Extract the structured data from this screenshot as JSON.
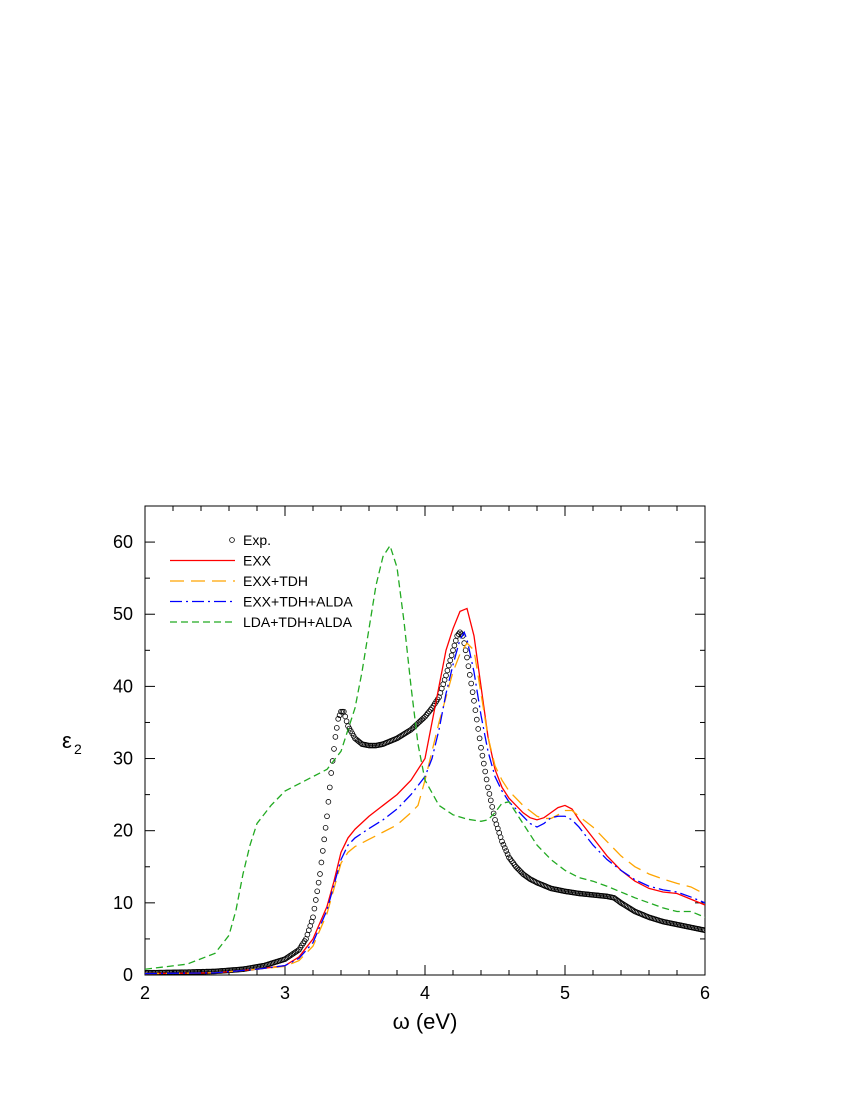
{
  "chart_data": {
    "type": "line",
    "xlabel": "ω (eV)",
    "ylabel": "ε",
    "ylabel_subscript": "2",
    "xlim": [
      2,
      6
    ],
    "ylim": [
      0,
      65
    ],
    "xticks": [
      2,
      3,
      4,
      5,
      6
    ],
    "yticks": [
      0,
      10,
      20,
      30,
      40,
      50,
      60
    ],
    "grid": false,
    "legend_position": "top-left",
    "series": [
      {
        "name": "Exp.",
        "style": "open-circles",
        "color": "#000000",
        "x": [
          2.0,
          2.3,
          2.5,
          2.7,
          2.85,
          3.0,
          3.1,
          3.15,
          3.2,
          3.25,
          3.3,
          3.33,
          3.36,
          3.38,
          3.4,
          3.42,
          3.45,
          3.5,
          3.55,
          3.6,
          3.65,
          3.7,
          3.8,
          3.9,
          4.0,
          4.05,
          4.1,
          4.15,
          4.2,
          4.23,
          4.25,
          4.27,
          4.3,
          4.35,
          4.4,
          4.45,
          4.5,
          4.55,
          4.6,
          4.65,
          4.7,
          4.75,
          4.8,
          4.85,
          4.9,
          5.0,
          5.1,
          5.2,
          5.3,
          5.35,
          5.4,
          5.5,
          5.6,
          5.7,
          5.8,
          5.9,
          6.0
        ],
        "y": [
          0.3,
          0.4,
          0.5,
          0.8,
          1.3,
          2.2,
          3.5,
          5.0,
          8.0,
          14.0,
          22.0,
          28.0,
          33.0,
          35.5,
          36.5,
          36.5,
          34.5,
          32.8,
          32.0,
          31.8,
          31.8,
          32.0,
          32.8,
          34.0,
          35.8,
          37.0,
          38.5,
          41.5,
          45.0,
          47.0,
          47.5,
          47.0,
          44.0,
          38.0,
          31.5,
          26.0,
          21.5,
          18.5,
          16.3,
          15.0,
          14.0,
          13.3,
          12.8,
          12.4,
          12.0,
          11.6,
          11.3,
          11.1,
          10.9,
          10.7,
          10.0,
          8.8,
          8.0,
          7.4,
          7.0,
          6.6,
          6.2
        ]
      },
      {
        "name": "EXX",
        "style": "solid",
        "color": "#ff0000",
        "x": [
          2.0,
          2.5,
          2.8,
          3.0,
          3.1,
          3.2,
          3.3,
          3.35,
          3.4,
          3.45,
          3.5,
          3.6,
          3.7,
          3.8,
          3.9,
          4.0,
          4.1,
          4.15,
          4.2,
          4.25,
          4.3,
          4.35,
          4.4,
          4.45,
          4.5,
          4.55,
          4.6,
          4.7,
          4.75,
          4.8,
          4.85,
          4.9,
          4.95,
          5.0,
          5.05,
          5.1,
          5.2,
          5.3,
          5.4,
          5.5,
          5.6,
          5.7,
          5.8,
          5.9,
          6.0
        ],
        "y": [
          0.2,
          0.3,
          0.8,
          1.3,
          2.5,
          5.0,
          9.5,
          13.0,
          17.0,
          19.0,
          20.2,
          22.0,
          23.5,
          25.0,
          27.0,
          30.0,
          40.0,
          45.0,
          48.0,
          50.4,
          50.8,
          47.0,
          40.0,
          33.0,
          28.5,
          26.0,
          24.5,
          22.5,
          21.8,
          21.5,
          21.8,
          22.5,
          23.2,
          23.5,
          23.0,
          21.5,
          19.0,
          16.5,
          14.5,
          13.0,
          12.0,
          11.5,
          11.3,
          10.5,
          9.7
        ]
      },
      {
        "name": "EXX+TDH",
        "style": "long-dash",
        "color": "#ffa500",
        "x": [
          2.0,
          2.5,
          2.8,
          3.0,
          3.1,
          3.2,
          3.3,
          3.35,
          3.4,
          3.45,
          3.5,
          3.6,
          3.7,
          3.8,
          3.9,
          3.95,
          4.0,
          4.1,
          4.2,
          4.25,
          4.3,
          4.35,
          4.4,
          4.45,
          4.5,
          4.55,
          4.6,
          4.7,
          4.8,
          4.85,
          4.9,
          4.95,
          5.0,
          5.05,
          5.1,
          5.2,
          5.3,
          5.4,
          5.5,
          5.6,
          5.7,
          5.8,
          5.9,
          6.0
        ],
        "y": [
          0.2,
          0.3,
          0.8,
          1.2,
          2.0,
          4.0,
          8.5,
          12.0,
          15.5,
          17.0,
          17.8,
          18.8,
          19.8,
          20.8,
          22.5,
          23.5,
          27.0,
          35.0,
          42.0,
          44.5,
          46.0,
          45.0,
          39.0,
          33.0,
          29.0,
          27.0,
          25.5,
          23.5,
          22.0,
          21.7,
          21.7,
          22.2,
          22.8,
          22.8,
          22.0,
          20.5,
          18.5,
          16.5,
          15.0,
          14.0,
          13.3,
          12.7,
          12.2,
          11.2
        ]
      },
      {
        "name": "EXX+TDH+ALDA",
        "style": "dash-dot",
        "color": "#0000ff",
        "x": [
          2.0,
          2.5,
          2.8,
          3.0,
          3.1,
          3.2,
          3.3,
          3.35,
          3.4,
          3.45,
          3.5,
          3.6,
          3.7,
          3.8,
          3.9,
          4.0,
          4.05,
          4.1,
          4.15,
          4.2,
          4.25,
          4.28,
          4.3,
          4.35,
          4.4,
          4.45,
          4.5,
          4.55,
          4.6,
          4.7,
          4.75,
          4.8,
          4.85,
          4.9,
          4.95,
          5.0,
          5.05,
          5.1,
          5.2,
          5.3,
          5.4,
          5.5,
          5.6,
          5.7,
          5.8,
          5.9,
          6.0
        ],
        "y": [
          0.2,
          0.3,
          0.8,
          1.3,
          2.3,
          4.5,
          9.0,
          12.5,
          16.0,
          18.0,
          19.0,
          20.3,
          21.5,
          23.0,
          25.0,
          27.5,
          30.0,
          34.0,
          39.0,
          43.0,
          46.5,
          47.5,
          46.5,
          42.0,
          36.0,
          31.0,
          27.5,
          25.5,
          24.0,
          22.0,
          21.0,
          20.5,
          21.0,
          21.8,
          22.0,
          22.0,
          21.5,
          20.5,
          18.0,
          16.0,
          14.5,
          13.2,
          12.3,
          11.8,
          11.5,
          10.8,
          10.0
        ]
      },
      {
        "name": "LDA+TDH+ALDA",
        "style": "short-dash",
        "color": "#22aa22",
        "x": [
          2.0,
          2.3,
          2.5,
          2.6,
          2.65,
          2.7,
          2.75,
          2.8,
          2.9,
          3.0,
          3.1,
          3.2,
          3.3,
          3.4,
          3.5,
          3.55,
          3.6,
          3.65,
          3.7,
          3.75,
          3.8,
          3.85,
          3.9,
          3.95,
          4.0,
          4.1,
          4.2,
          4.3,
          4.4,
          4.45,
          4.5,
          4.55,
          4.6,
          4.7,
          4.8,
          4.9,
          5.0,
          5.1,
          5.2,
          5.3,
          5.4,
          5.5,
          5.6,
          5.7,
          5.8,
          5.9,
          6.0
        ],
        "y": [
          0.8,
          1.5,
          3.0,
          5.5,
          9.0,
          14.0,
          18.0,
          21.0,
          23.5,
          25.5,
          26.5,
          27.5,
          28.5,
          31.0,
          37.0,
          42.0,
          48.0,
          54.0,
          58.0,
          59.5,
          56.5,
          49.0,
          40.0,
          32.0,
          27.0,
          23.5,
          22.2,
          21.6,
          21.3,
          21.5,
          22.5,
          23.8,
          24.0,
          21.0,
          18.0,
          16.0,
          14.5,
          13.5,
          13.0,
          12.3,
          11.5,
          10.7,
          10.0,
          9.3,
          8.8,
          8.8,
          8.0
        ]
      }
    ]
  }
}
